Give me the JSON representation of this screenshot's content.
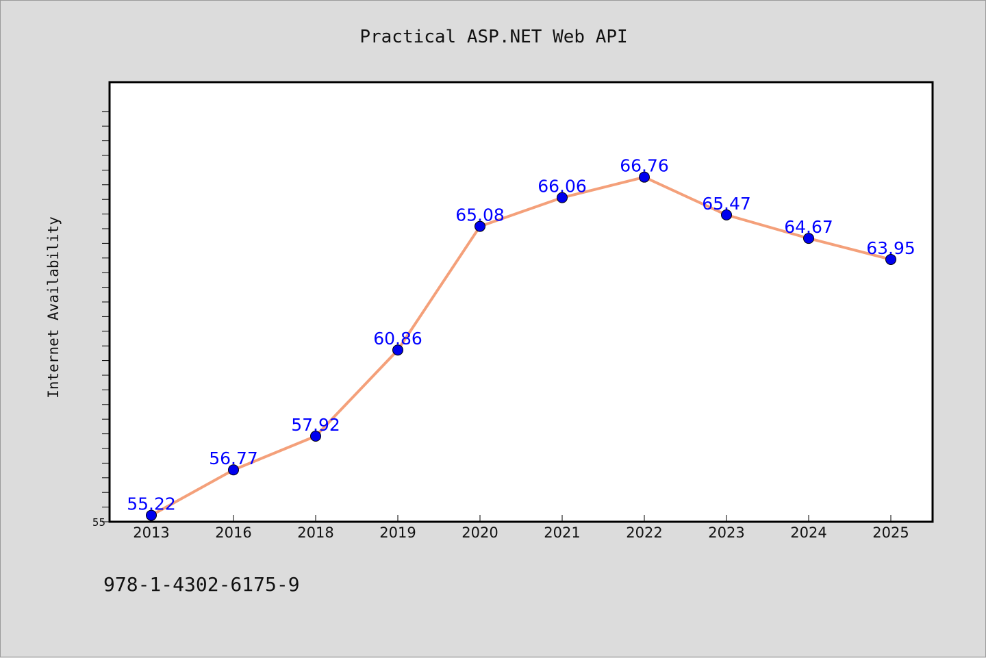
{
  "chart_data": {
    "type": "line",
    "title": "Practical ASP.NET Web API",
    "xlabel": "",
    "ylabel": "Internet Availability",
    "categories": [
      "2013",
      "2016",
      "2018",
      "2019",
      "2020",
      "2021",
      "2022",
      "2023",
      "2024",
      "2025"
    ],
    "series": [
      {
        "values": [
          55.22,
          56.77,
          57.92,
          60.86,
          65.08,
          66.06,
          66.76,
          65.47,
          64.67,
          63.95
        ],
        "labels": [
          "55.22",
          "56.77",
          "57.92",
          "60.86",
          "65.08",
          "66.06",
          "66.76",
          "65.47",
          "64.67",
          "63.95"
        ],
        "line_color": "#f4a07a",
        "marker_color": "#0000ee"
      }
    ],
    "ylim": [
      55,
      70
    ],
    "y_tick_labels": [
      "55"
    ],
    "grid": false,
    "legend": "none"
  },
  "footer": {
    "isbn": "978-1-4302-6175-9"
  },
  "colors": {
    "background": "#dcdcdc",
    "plot_area": "#ffffff",
    "data_label": "#0000ff"
  }
}
